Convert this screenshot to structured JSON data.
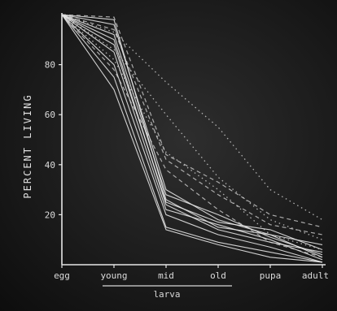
{
  "chart_data": {
    "type": "line",
    "ylabel": "PERCENT LIVING",
    "xlabel": "",
    "ylim": [
      0,
      100
    ],
    "yticks": [
      20,
      40,
      60,
      80
    ],
    "categories": [
      "egg",
      "young",
      "mid",
      "old",
      "pupa",
      "adult"
    ],
    "group_label": "larva",
    "group_categories": [
      "young",
      "mid",
      "old"
    ],
    "grid": false,
    "series": [
      {
        "style": "solid",
        "values": [
          100,
          96,
          30,
          18,
          12,
          3
        ]
      },
      {
        "style": "solid",
        "values": [
          100,
          92,
          28,
          20,
          11,
          4
        ]
      },
      {
        "style": "solid",
        "values": [
          100,
          88,
          25,
          17,
          14,
          6
        ]
      },
      {
        "style": "solid",
        "values": [
          100,
          85,
          22,
          16,
          10,
          2
        ]
      },
      {
        "style": "solid",
        "values": [
          100,
          80,
          20,
          12,
          7,
          1
        ]
      },
      {
        "style": "solid",
        "values": [
          100,
          75,
          15,
          9,
          5,
          1
        ]
      },
      {
        "style": "solid",
        "values": [
          100,
          70,
          14,
          8,
          3,
          1
        ]
      },
      {
        "style": "solid",
        "values": [
          100,
          98,
          26,
          15,
          12,
          8
        ]
      },
      {
        "style": "solid",
        "values": [
          100,
          90,
          24,
          14,
          9,
          5
        ]
      },
      {
        "style": "dotted",
        "values": [
          100,
          93,
          73,
          55,
          30,
          18
        ]
      },
      {
        "style": "dotted",
        "values": [
          100,
          86,
          60,
          35,
          18,
          10
        ]
      },
      {
        "style": "dotted",
        "values": [
          100,
          82,
          45,
          30,
          12,
          6
        ]
      },
      {
        "style": "dashed",
        "values": [
          100,
          99,
          44,
          33,
          20,
          15
        ]
      },
      {
        "style": "dashed",
        "values": [
          100,
          94,
          42,
          28,
          16,
          12
        ]
      },
      {
        "style": "dashed",
        "values": [
          100,
          78,
          38,
          22,
          9,
          3
        ]
      }
    ]
  }
}
